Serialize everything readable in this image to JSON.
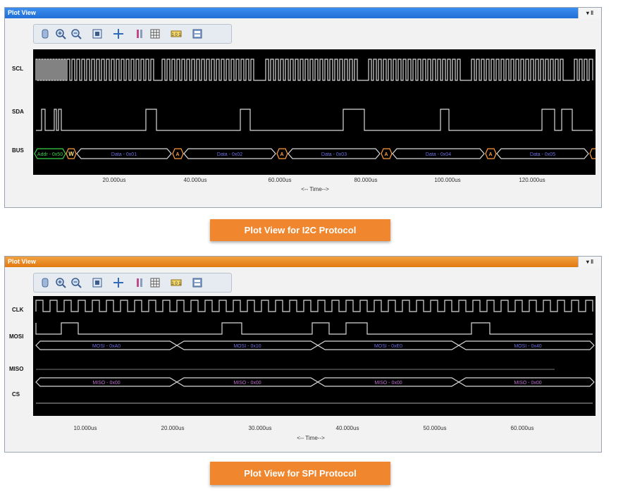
{
  "i2c": {
    "title": "Plot View",
    "controls": "▾ ‖",
    "toolbar": [
      "hand",
      "zoom-in",
      "zoom-out",
      "fit",
      "cursor",
      "mark",
      "grid",
      "ruler",
      "settings"
    ],
    "signals": [
      "SCL",
      "SDA",
      "BUS"
    ],
    "bus_labels": [
      "Addr - 0x50",
      "W",
      "Data - 0x01",
      "A",
      "Data - 0x02",
      "A",
      "Data - 0x03",
      "A",
      "Data - 0x04",
      "A",
      "Data - 0x05"
    ],
    "ticks": [
      "20.000us",
      "40.000us",
      "60.000us",
      "80.000us",
      "100.000us",
      "120.000us"
    ],
    "time_label": "<-- Time-->",
    "caption": "Plot View for I2C Protocol"
  },
  "spi": {
    "title": "Plot View",
    "controls": "▾ ‖",
    "signals": [
      "CLK",
      "MOSI",
      "MISO",
      "CS"
    ],
    "mosi_labels": [
      "MOSI - 0xA0",
      "MOSI - 0x10",
      "MOSI - 0xE0",
      "MOSI - 0x40"
    ],
    "miso_labels": [
      "MISO - 0x00",
      "MISO - 0x00",
      "MISO - 0x00",
      "MISO - 0x00"
    ],
    "ticks": [
      "10.000us",
      "20.000us",
      "30.000us",
      "40.000us",
      "50.000us",
      "60.000us"
    ],
    "time_label": "<-- Time-->",
    "caption": "Plot View for SPI Protocol"
  },
  "colors": {
    "trace": "#d8d8d8",
    "bus_data": "#6f6fe0",
    "ack": "#ff9c3a",
    "addr": "#39d24a",
    "miso": "#c070d0",
    "title_blue": "#2a7de1",
    "title_orange": "#e88a1e",
    "caption": "#f0872f"
  }
}
